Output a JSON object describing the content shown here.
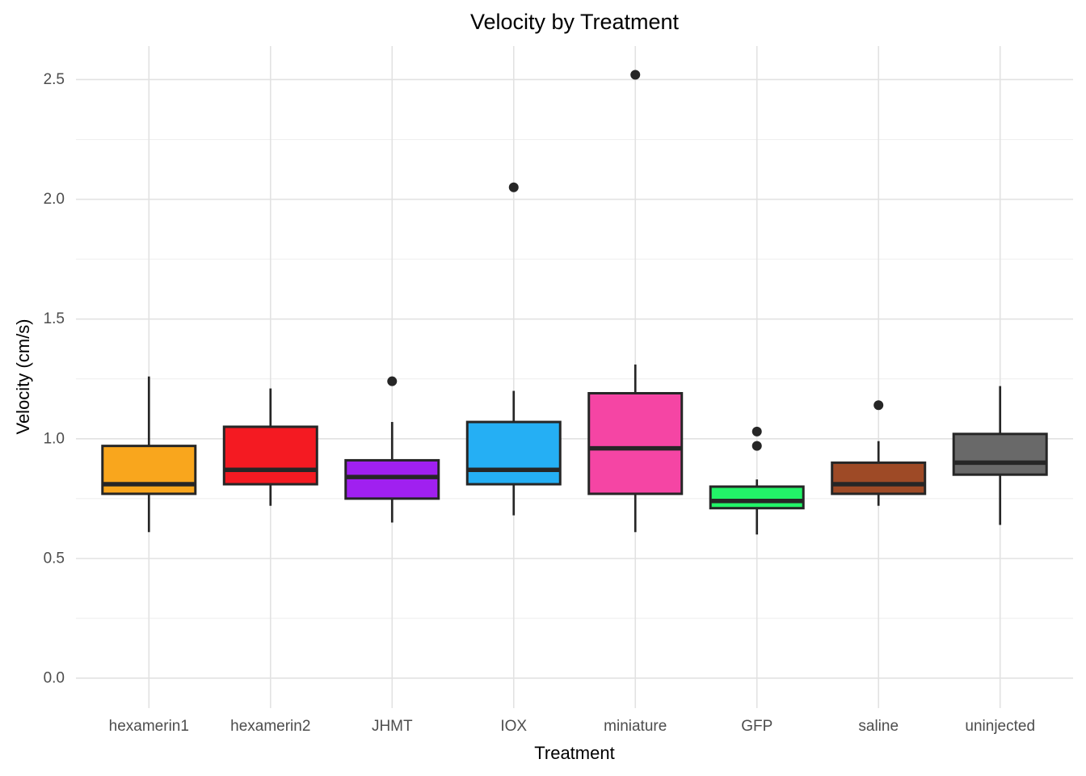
{
  "page": {
    "background_color": "#FFFFFF"
  },
  "chart_data": {
    "type": "boxplot",
    "title": "Velocity by Treatment",
    "xlabel": "Treatment",
    "ylabel": "Velocity (cm/s)",
    "ylim": [
      -0.125,
      2.64
    ],
    "ytick_values": [
      0.0,
      0.5,
      1.0,
      1.5,
      2.0,
      2.5
    ],
    "ytick_labels": [
      "0.0",
      "0.5",
      "1.0",
      "1.5",
      "2.0",
      "2.5"
    ],
    "minor_ytick_values": [
      0.25,
      0.75,
      1.25,
      1.75,
      2.25
    ],
    "grid": "horizontal major+minor lines, one vertical gridline per category",
    "legend_position": "none",
    "categories": [
      "hexamerin1",
      "hexamerin2",
      "JHMT",
      "IOX",
      "miniature",
      "GFP",
      "saline",
      "uninjected"
    ],
    "boxes": [
      {
        "label": "hexamerin1",
        "color": "#F9A61D",
        "whisker_low": 0.61,
        "q1": 0.77,
        "median": 0.81,
        "q3": 0.97,
        "whisker_high": 1.26,
        "outliers": []
      },
      {
        "label": "hexamerin2",
        "color": "#F41A22",
        "whisker_low": 0.72,
        "q1": 0.81,
        "median": 0.87,
        "q3": 1.05,
        "whisker_high": 1.21,
        "outliers": []
      },
      {
        "label": "JHMT",
        "color": "#A020F0",
        "whisker_low": 0.65,
        "q1": 0.75,
        "median": 0.84,
        "q3": 0.91,
        "whisker_high": 1.07,
        "outliers": [
          1.24
        ]
      },
      {
        "label": "IOX",
        "color": "#25AFF4",
        "whisker_low": 0.68,
        "q1": 0.81,
        "median": 0.87,
        "q3": 1.07,
        "whisker_high": 1.2,
        "outliers": [
          2.05
        ]
      },
      {
        "label": "miniature",
        "color": "#F545A4",
        "whisker_low": 0.61,
        "q1": 0.77,
        "median": 0.96,
        "q3": 1.19,
        "whisker_high": 1.31,
        "outliers": [
          2.52
        ]
      },
      {
        "label": "GFP",
        "color": "#22F468",
        "whisker_low": 0.6,
        "q1": 0.71,
        "median": 0.74,
        "q3": 0.8,
        "whisker_high": 0.83,
        "outliers": [
          0.97,
          1.03
        ]
      },
      {
        "label": "saline",
        "color": "#9E4A26",
        "whisker_low": 0.72,
        "q1": 0.77,
        "median": 0.81,
        "q3": 0.9,
        "whisker_high": 0.99,
        "outliers": [
          1.14
        ]
      },
      {
        "label": "uninjected",
        "color": "#696969",
        "whisker_low": 0.64,
        "q1": 0.85,
        "median": 0.9,
        "q3": 1.02,
        "whisker_high": 1.22,
        "outliers": []
      }
    ]
  },
  "style": {
    "grid_major_color": "#E2E2E2",
    "grid_minor_color": "#EFEFEF",
    "tick_label_color": "#4D4D4D",
    "title_color": "#000000",
    "axis_title_color": "#000000",
    "box_stroke_color": "#262626",
    "median_color": "#262626",
    "whisker_color": "#262626",
    "outlier_color": "#262626"
  }
}
